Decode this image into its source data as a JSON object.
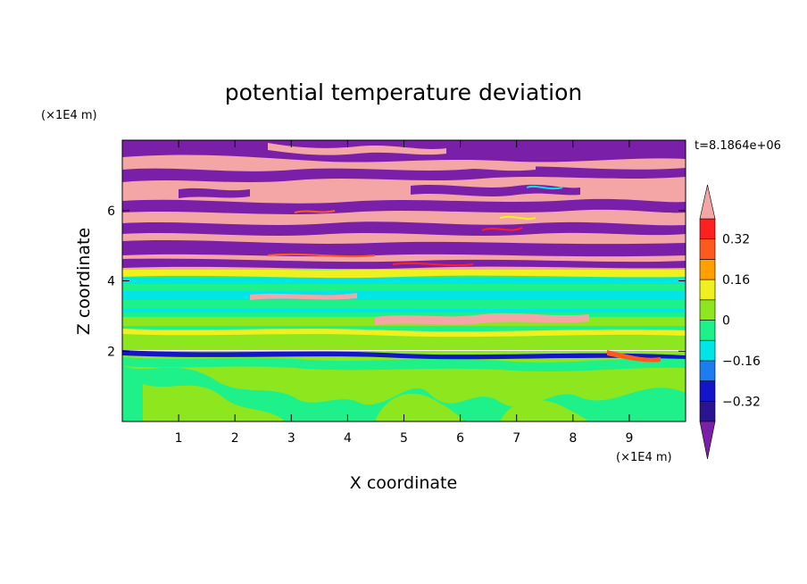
{
  "chart_data": {
    "type": "heatmap",
    "title": "potential temperature deviation",
    "xlabel": "X coordinate",
    "ylabel": "Z coordinate",
    "x_unit": "(×1E4 m)",
    "y_unit": "(×1E4 m)",
    "time_label": "t=8.1864e+06",
    "xlim": [
      0,
      10
    ],
    "ylim": [
      0,
      8
    ],
    "x_ticks": [
      "1",
      "2",
      "3",
      "4",
      "5",
      "6",
      "7",
      "8",
      "9"
    ],
    "y_ticks": [
      "2",
      "4",
      "6"
    ],
    "colorbar": {
      "levels": [
        -0.4,
        -0.32,
        -0.24,
        -0.16,
        -0.08,
        0,
        0.08,
        0.16,
        0.24,
        0.32,
        0.4
      ],
      "colors": [
        "#7a1fa8",
        "#2b1490",
        "#1414c8",
        "#1d7cf0",
        "#00e6e6",
        "#1ef08a",
        "#8ee61e",
        "#f0f01e",
        "#ffa000",
        "#ff5a1e",
        "#ff2020",
        "#f4a6a6"
      ],
      "tick_labels": [
        "0.32",
        "0.16",
        "0",
        "−0.16",
        "−0.32"
      ],
      "extend": "both"
    },
    "layers": [
      {
        "zmin": 0.0,
        "zmax": 1.9,
        "dominant": "0 to 0.08 (light green)",
        "secondary": "-0.08 to 0 (green)"
      },
      {
        "zmin": 1.9,
        "zmax": 2.1,
        "dominant": "-0.24 to -0.16 (blue)"
      },
      {
        "zmin": 2.1,
        "zmax": 4.1,
        "dominant": "-0.08 to 0.08 (cyan/green bands)"
      },
      {
        "zmin": 4.1,
        "zmax": 8.0,
        "dominant": "alternating > 0.40 (pink) and < -0.40 (purple)"
      }
    ]
  }
}
